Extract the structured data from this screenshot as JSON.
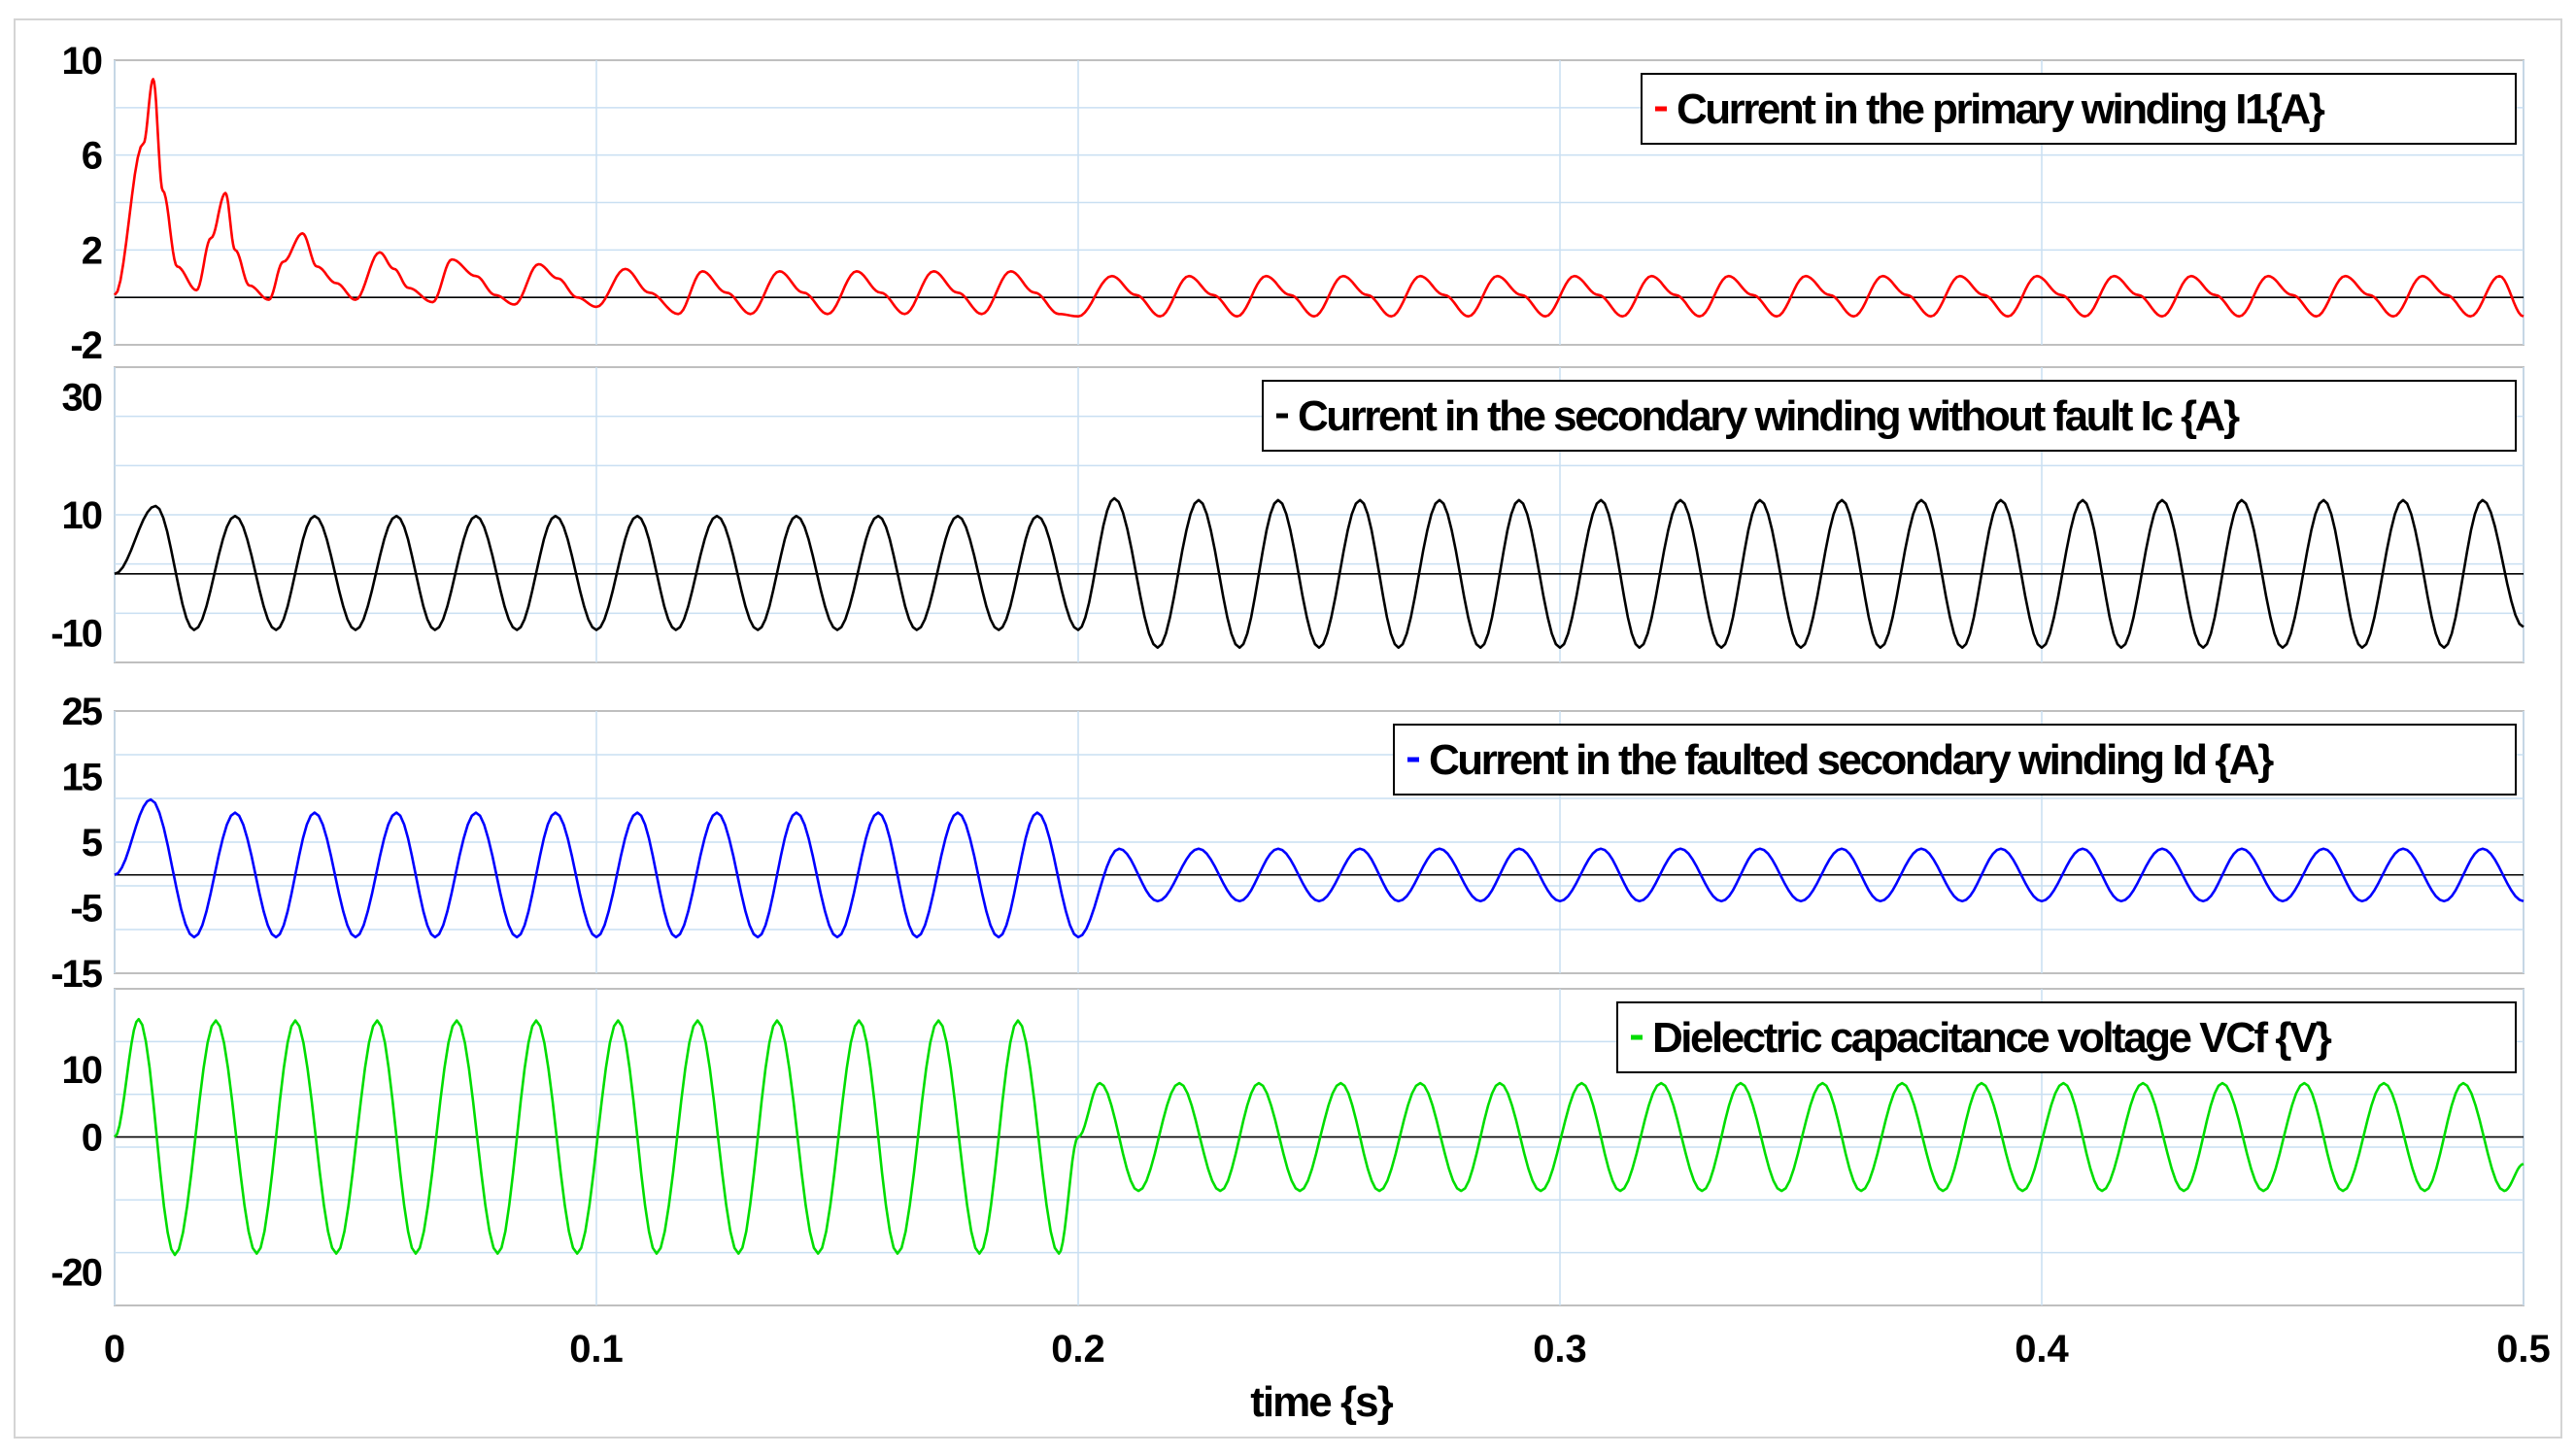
{
  "chart_data": {
    "type": "line",
    "xlabel": "time {s}",
    "xlim": [
      0,
      0.5
    ],
    "x_ticks": [
      "0",
      "0.1",
      "0.2",
      "0.3",
      "0.4",
      "0.5"
    ],
    "x_tick_values": [
      0,
      0.1,
      0.2,
      0.3,
      0.4,
      0.5
    ],
    "grid": true,
    "legend_placement": "top-right",
    "panels": [
      {
        "legend": "Current in the primary winding I1{A}",
        "color": "#ff0000",
        "ylim": [
          -2,
          10
        ],
        "y_ticks": [
          "10",
          "6",
          "2",
          "-2"
        ],
        "y_tick_values": [
          10,
          6,
          2,
          -2
        ],
        "series": [
          {
            "name": "Current in the primary winding I1{A}",
            "x": [
              0,
              0.006,
              0.008,
              0.01,
              0.013,
              0.017,
              0.02,
              0.023,
              0.025,
              0.028,
              0.032,
              0.035,
              0.039,
              0.042,
              0.046,
              0.05,
              0.055,
              0.058,
              0.061,
              0.066,
              0.07,
              0.075,
              0.079,
              0.083,
              0.088,
              0.092,
              0.096,
              0.1,
              0.106,
              0.111,
              0.117,
              0.122,
              0.127,
              0.132,
              0.138,
              0.143,
              0.148,
              0.154,
              0.159,
              0.164,
              0.17,
              0.175,
              0.18,
              0.186,
              0.191,
              0.196,
              0.2,
              0.207,
              0.212,
              0.217,
              0.223,
              0.228,
              0.233,
              0.239,
              0.244,
              0.249,
              0.255,
              0.26,
              0.265,
              0.271,
              0.276,
              0.281,
              0.287,
              0.292,
              0.297,
              0.303,
              0.308,
              0.313,
              0.319,
              0.324,
              0.329,
              0.335,
              0.34,
              0.345,
              0.351,
              0.356,
              0.361,
              0.367,
              0.372,
              0.377,
              0.383,
              0.388,
              0.393,
              0.399,
              0.404,
              0.409,
              0.415,
              0.42,
              0.425,
              0.431,
              0.436,
              0.441,
              0.447,
              0.452,
              0.457,
              0.463,
              0.468,
              0.473,
              0.479,
              0.484,
              0.489,
              0.495,
              0.5
            ],
            "values": [
              0.1,
              6.5,
              9.2,
              4.5,
              1.3,
              0.3,
              2.5,
              4.4,
              2.0,
              0.5,
              -0.1,
              1.5,
              2.7,
              1.3,
              0.6,
              -0.1,
              1.9,
              1.2,
              0.4,
              -0.2,
              1.6,
              0.9,
              0.1,
              -0.3,
              1.4,
              0.8,
              0.0,
              -0.4,
              1.2,
              0.2,
              -0.7,
              1.1,
              0.2,
              -0.7,
              1.1,
              0.2,
              -0.7,
              1.1,
              0.2,
              -0.7,
              1.1,
              0.2,
              -0.7,
              1.1,
              0.2,
              -0.7,
              -0.8,
              0.9,
              0.1,
              -0.8,
              0.9,
              0.1,
              -0.8,
              0.9,
              0.1,
              -0.8,
              0.9,
              0.1,
              -0.8,
              0.9,
              0.1,
              -0.8,
              0.9,
              0.1,
              -0.8,
              0.9,
              0.1,
              -0.8,
              0.9,
              0.1,
              -0.8,
              0.9,
              0.1,
              -0.8,
              0.9,
              0.1,
              -0.8,
              0.9,
              0.1,
              -0.8,
              0.9,
              0.1,
              -0.8,
              0.9,
              0.1,
              -0.8,
              0.9,
              0.1,
              -0.8,
              0.9,
              0.1,
              -0.8,
              0.9,
              0.1,
              -0.8,
              0.9,
              0.1,
              -0.8,
              0.9,
              0.1,
              -0.8,
              0.9,
              -0.8
            ]
          }
        ]
      },
      {
        "legend": "Current in the secondary winding without fault Ic {A}",
        "color": "#000000",
        "ylim": [
          -15,
          35
        ],
        "y_ticks": [
          "30",
          "10",
          "-10"
        ],
        "y_tick_values": [
          30,
          10,
          -10
        ],
        "series": [
          {
            "name": "Current in the secondary winding without fault Ic {A}",
            "x": [
              0,
              0.0085,
              0.0165,
              0.025,
              0.0335,
              0.0415,
              0.05,
              0.0585,
              0.0665,
              0.075,
              0.0835,
              0.0915,
              0.1,
              0.1085,
              0.1165,
              0.125,
              0.1335,
              0.1415,
              0.15,
              0.1585,
              0.1665,
              0.175,
              0.1835,
              0.1915,
              0.2,
              0.2075,
              0.2165,
              0.225,
              0.2335,
              0.2415,
              0.25,
              0.2585,
              0.2665,
              0.275,
              0.2835,
              0.2915,
              0.3,
              0.3085,
              0.3165,
              0.325,
              0.3335,
              0.3415,
              0.35,
              0.3585,
              0.3665,
              0.375,
              0.3835,
              0.3915,
              0.4,
              0.4085,
              0.4165,
              0.425,
              0.4335,
              0.4415,
              0.45,
              0.4585,
              0.4665,
              0.475,
              0.4835,
              0.4915,
              0.5
            ],
            "values": [
              0,
              11.5,
              -9.5,
              9.8,
              -9.5,
              9.8,
              -9.5,
              9.8,
              -9.5,
              9.8,
              -9.5,
              9.8,
              -9.5,
              9.8,
              -9.5,
              9.8,
              -9.5,
              9.8,
              -9.5,
              9.8,
              -9.5,
              9.8,
              -9.5,
              9.8,
              -9.5,
              12.8,
              -12.5,
              12.5,
              -12.5,
              12.5,
              -12.5,
              12.5,
              -12.5,
              12.5,
              -12.5,
              12.5,
              -12.5,
              12.5,
              -12.5,
              12.5,
              -12.5,
              12.5,
              -12.5,
              12.5,
              -12.5,
              12.5,
              -12.5,
              12.5,
              -12.5,
              12.5,
              -12.5,
              12.5,
              -12.5,
              12.5,
              -12.5,
              12.5,
              -12.5,
              12.5,
              -12.5,
              12.5,
              -9
            ]
          }
        ]
      },
      {
        "legend": "Current in the faulted secondary winding Id {A}",
        "color": "#0000ff",
        "ylim": [
          -15,
          25
        ],
        "y_ticks": [
          "25",
          "15",
          "5",
          "-5",
          "-15"
        ],
        "y_tick_values": [
          25,
          15,
          5,
          -5,
          -15
        ],
        "series": [
          {
            "name": "Current in the faulted secondary winding Id {A}",
            "x": [
              0,
              0.0075,
              0.0165,
              0.025,
              0.0335,
              0.0415,
              0.05,
              0.0585,
              0.0665,
              0.075,
              0.0835,
              0.0915,
              0.1,
              0.1085,
              0.1165,
              0.125,
              0.1335,
              0.1415,
              0.15,
              0.1585,
              0.1665,
              0.175,
              0.1835,
              0.1915,
              0.2,
              0.2085,
              0.2165,
              0.225,
              0.2335,
              0.2415,
              0.25,
              0.2585,
              0.2665,
              0.275,
              0.2835,
              0.2915,
              0.3,
              0.3085,
              0.3165,
              0.325,
              0.3335,
              0.3415,
              0.35,
              0.3585,
              0.3665,
              0.375,
              0.3835,
              0.3915,
              0.4,
              0.4085,
              0.4165,
              0.425,
              0.4335,
              0.4415,
              0.45,
              0.4585,
              0.4665,
              0.475,
              0.4835,
              0.4915,
              0.5
            ],
            "values": [
              0,
              11.5,
              -9.5,
              9.5,
              -9.5,
              9.5,
              -9.5,
              9.5,
              -9.5,
              9.5,
              -9.5,
              9.5,
              -9.5,
              9.5,
              -9.5,
              9.5,
              -9.5,
              9.5,
              -9.5,
              9.5,
              -9.5,
              9.5,
              -9.5,
              9.5,
              -9.5,
              4,
              -4,
              4,
              -4,
              4,
              -4,
              4,
              -4,
              4,
              -4,
              4,
              -4,
              4,
              -4,
              4,
              -4,
              4,
              -4,
              4,
              -4,
              4,
              -4,
              4,
              -4,
              4,
              -4,
              4,
              -4,
              4,
              -4,
              4,
              -4,
              4,
              -4,
              4,
              -4
            ]
          }
        ]
      },
      {
        "legend": "Dielectric capacitance voltage VCf {V}",
        "color": "#00dd00",
        "ylim": [
          -25,
          22
        ],
        "y_ticks": [
          "10",
          "0",
          "-20"
        ],
        "y_tick_values": [
          10,
          0,
          -20
        ],
        "series": [
          {
            "name": "Dielectric capacitance voltage VCf {V}",
            "x": [
              0,
              0.005,
              0.0125,
              0.021,
              0.0295,
              0.0375,
              0.046,
              0.0545,
              0.0625,
              0.071,
              0.0795,
              0.0875,
              0.096,
              0.1045,
              0.1125,
              0.121,
              0.1295,
              0.1375,
              0.146,
              0.1545,
              0.1625,
              0.171,
              0.1795,
              0.1875,
              0.196,
              0.2,
              0.2045,
              0.2125,
              0.221,
              0.2295,
              0.2375,
              0.246,
              0.2545,
              0.2625,
              0.271,
              0.2795,
              0.2875,
              0.296,
              0.3045,
              0.3125,
              0.321,
              0.3295,
              0.3375,
              0.346,
              0.3545,
              0.3625,
              0.371,
              0.3795,
              0.3875,
              0.396,
              0.4045,
              0.4125,
              0.421,
              0.4295,
              0.4375,
              0.446,
              0.4545,
              0.4625,
              0.471,
              0.4795,
              0.4875,
              0.496,
              0.5
            ],
            "values": [
              0,
              17.5,
              -17.5,
              17.3,
              -17.3,
              17.3,
              -17.3,
              17.3,
              -17.3,
              17.3,
              -17.3,
              17.3,
              -17.3,
              17.3,
              -17.3,
              17.3,
              -17.3,
              17.3,
              -17.3,
              17.3,
              -17.3,
              17.3,
              -17.3,
              17.3,
              -17.3,
              0,
              8,
              -8,
              8,
              -8,
              8,
              -8,
              8,
              -8,
              8,
              -8,
              8,
              -8,
              8,
              -8,
              8,
              -8,
              8,
              -8,
              8,
              -8,
              8,
              -8,
              8,
              -8,
              8,
              -8,
              8,
              -8,
              8,
              -8,
              8,
              -8,
              8,
              -8,
              8,
              -8,
              -4
            ]
          }
        ]
      }
    ]
  }
}
